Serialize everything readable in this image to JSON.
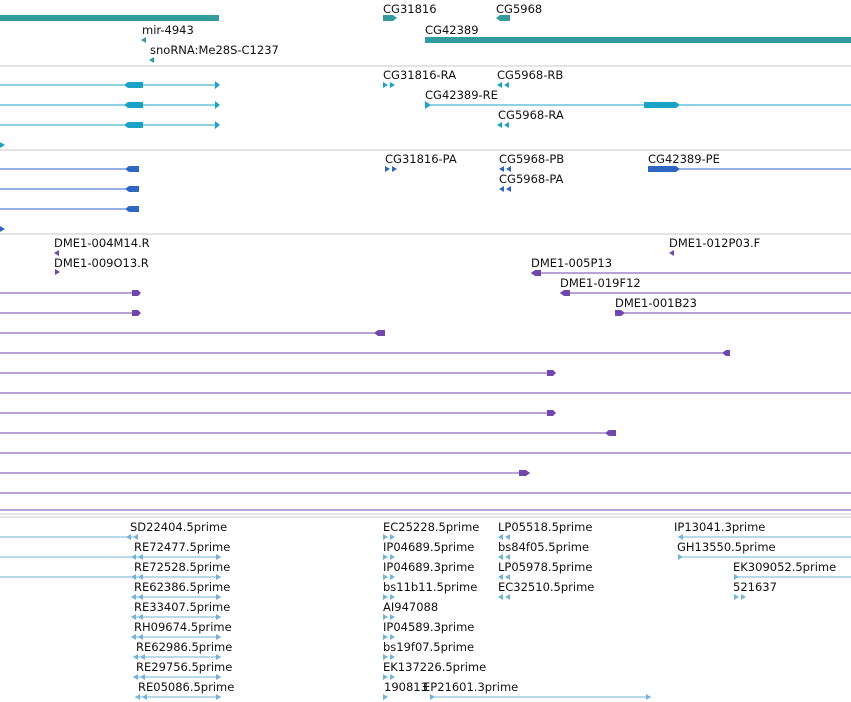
{
  "colors": {
    "gene": "#339b9b",
    "transcript": "#1ba3c5",
    "protein": "#2f66c4",
    "clone": "#7047ad",
    "est": "#74b4d8",
    "divider": "#c8c8c8"
  },
  "tracks": {
    "genes": {
      "labels": [
        "CG31816",
        "CG5968",
        "mir-4943",
        "CG42389",
        "snoRNA:Me28S-C1237"
      ]
    },
    "transcripts": {
      "labels": [
        "CG31816-RA",
        "CG5968-RB",
        "CG42389-RE",
        "CG5968-RA"
      ]
    },
    "proteins": {
      "labels": [
        "CG31816-PA",
        "CG5968-PB",
        "CG42389-PE",
        "CG5968-PA"
      ]
    },
    "clones": {
      "labels": [
        "DME1-004M14.R",
        "DME1-012P03.F",
        "DME1-009O13.R",
        "DME1-005P13",
        "DME1-019F12",
        "DME1-001B23"
      ]
    },
    "ests": {
      "labels": [
        "SD22404.5prime",
        "EC25228.5prime",
        "LP05518.5prime",
        "IP13041.3prime",
        "RE72477.5prime",
        "IP04689.5prime",
        "bs84f05.5prime",
        "GH13550.5prime",
        "RE72528.5prime",
        "IP04689.3prime",
        "LP05978.5prime",
        "EK309052.5prime",
        "RE62386.5prime",
        "bs11b11.5prime",
        "EC32510.5prime",
        "521637",
        "RE33407.5prime",
        "AI947088",
        "RH09674.5prime",
        "IP04589.3prime",
        "RE62986.5prime",
        "bs19f07.5prime",
        "RE29756.5prime",
        "EK137226.5prime",
        "RE05086.5prime",
        "190813",
        "EP21601.3prime"
      ]
    }
  }
}
